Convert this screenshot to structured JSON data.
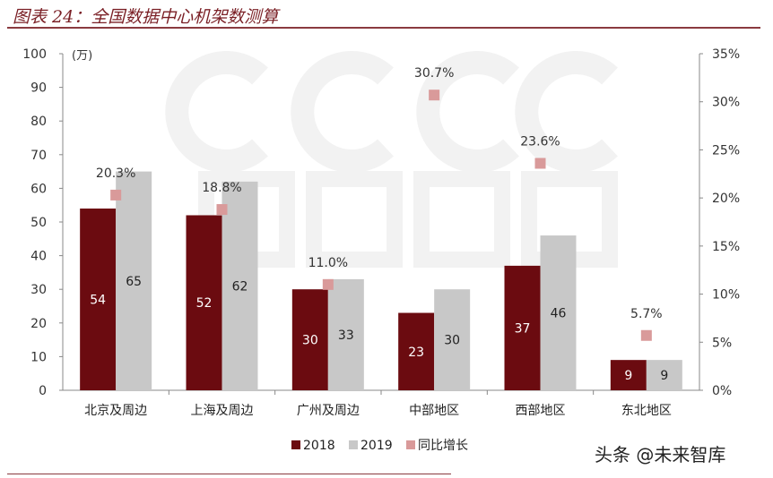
{
  "title": "图表 24：全国数据中心机架数测算",
  "watermark": "CICC 中金公司",
  "footer": "头条 @未来智库",
  "colors": {
    "s2018": "#6b0b10",
    "s2019": "#c8c8c8",
    "growth": "#d99a9a"
  },
  "chart_data": {
    "type": "bar",
    "title": "",
    "ylabel": "(万)",
    "ylim": [
      0,
      100
    ],
    "yticks": [
      0,
      10,
      20,
      30,
      40,
      50,
      60,
      70,
      80,
      90,
      100
    ],
    "y2lim": [
      0,
      35
    ],
    "y2ticks": [
      "0%",
      "5%",
      "10%",
      "15%",
      "20%",
      "25%",
      "30%",
      "35%"
    ],
    "categories": [
      "北京及周边",
      "上海及周边",
      "广州及周边",
      "中部地区",
      "西部地区",
      "东北地区"
    ],
    "series": [
      {
        "name": "2018",
        "type": "bar",
        "axis": "left",
        "values": [
          54,
          52,
          30,
          23,
          37,
          9
        ]
      },
      {
        "name": "2019",
        "type": "bar",
        "axis": "left",
        "values": [
          65,
          62,
          33,
          30,
          46,
          9
        ]
      },
      {
        "name": "同比增长",
        "type": "scatter",
        "axis": "right",
        "values": [
          20.3,
          18.8,
          11.0,
          30.7,
          23.6,
          5.7
        ],
        "labels": [
          "20.3%",
          "18.8%",
          "11.0%",
          "30.7%",
          "23.6%",
          "5.7%"
        ]
      }
    ],
    "legend": "bottom",
    "grid": false
  }
}
